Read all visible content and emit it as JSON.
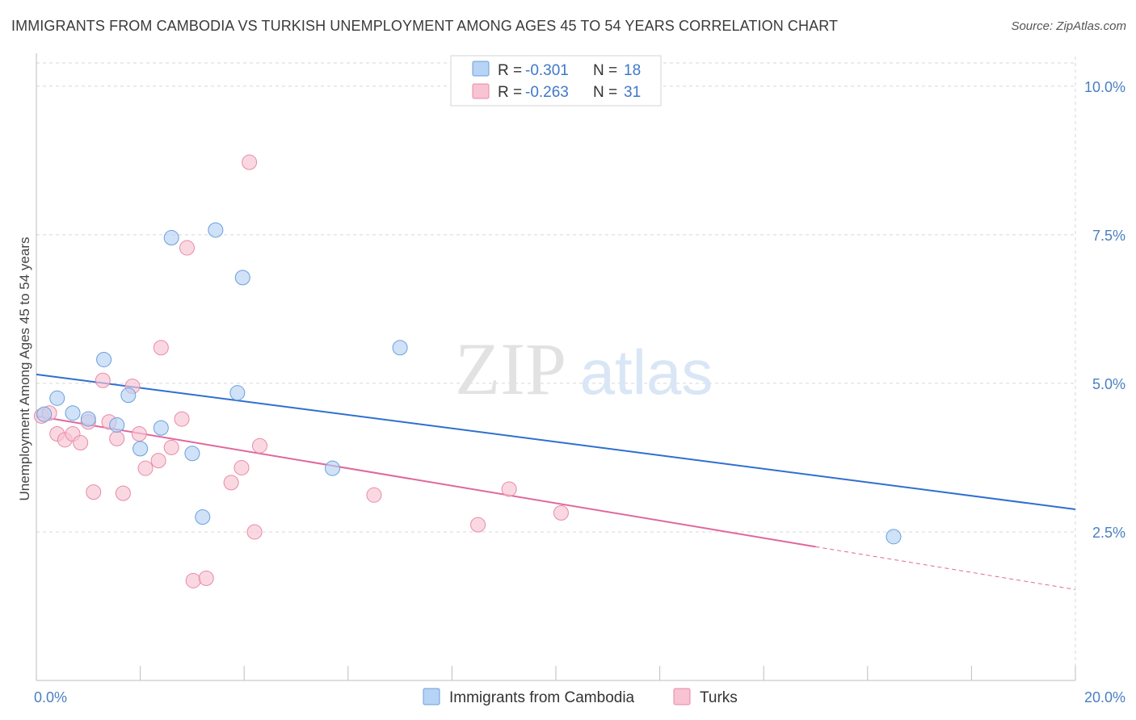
{
  "title": "IMMIGRANTS FROM CAMBODIA VS TURKISH UNEMPLOYMENT AMONG AGES 45 TO 54 YEARS CORRELATION CHART",
  "source": "Source: ZipAtlas.com",
  "watermark": {
    "zip": "ZIP",
    "atlas": "atlas"
  },
  "colors": {
    "cambodia_fill": "#b7d3f5",
    "cambodia_stroke": "#6a9fdb",
    "cambodia_line": "#2f6fcf",
    "turks_fill": "#f8c3d3",
    "turks_stroke": "#e88aa8",
    "turks_line": "#e0689a",
    "grid": "#d7d7d7",
    "axis_text": "#4a7fc1"
  },
  "legend": {
    "rows": [
      {
        "r_label": "R = ",
        "r_value": "-0.301",
        "n_label": "N = ",
        "n_value": "18"
      },
      {
        "r_label": "R = ",
        "r_value": "-0.263",
        "n_label": "N = ",
        "n_value": "31"
      }
    ]
  },
  "chart_data": {
    "type": "scatter",
    "title": "IMMIGRANTS FROM CAMBODIA VS TURKISH UNEMPLOYMENT AMONG AGES 45 TO 54 YEARS CORRELATION CHART",
    "xlabel": "",
    "ylabel": "Unemployment Among Ages 45 to 54 years",
    "xlim": [
      0,
      20
    ],
    "ylim": [
      0,
      10.5
    ],
    "x_tick_labels": [
      "0.0%",
      "20.0%"
    ],
    "y_ticks": [
      {
        "value": 2.5,
        "label": "2.5%"
      },
      {
        "value": 5.0,
        "label": "5.0%"
      },
      {
        "value": 7.5,
        "label": "7.5%"
      },
      {
        "value": 10.0,
        "label": "10.0%"
      }
    ],
    "grid": true,
    "legend_position": "top-center",
    "series": [
      {
        "name": "Immigrants from Cambodia",
        "points": [
          [
            0.15,
            4.48
          ],
          [
            0.4,
            4.75
          ],
          [
            0.7,
            4.5
          ],
          [
            1.0,
            4.4
          ],
          [
            1.3,
            5.4
          ],
          [
            1.55,
            4.3
          ],
          [
            1.77,
            4.8
          ],
          [
            2.0,
            3.9
          ],
          [
            2.4,
            4.25
          ],
          [
            2.6,
            7.45
          ],
          [
            3.0,
            3.82
          ],
          [
            3.2,
            2.75
          ],
          [
            3.45,
            7.58
          ],
          [
            3.87,
            4.84
          ],
          [
            3.97,
            6.78
          ],
          [
            5.7,
            3.57
          ],
          [
            7.0,
            5.6
          ],
          [
            16.5,
            2.42
          ]
        ],
        "trend": {
          "x0": 0,
          "y0": 5.15,
          "x1": 20,
          "y1": 2.88
        }
      },
      {
        "name": "Turks",
        "points": [
          [
            0.1,
            4.45
          ],
          [
            0.25,
            4.5
          ],
          [
            0.4,
            4.15
          ],
          [
            0.55,
            4.05
          ],
          [
            0.7,
            4.15
          ],
          [
            0.85,
            4.0
          ],
          [
            1.0,
            4.35
          ],
          [
            1.1,
            3.17
          ],
          [
            1.28,
            5.05
          ],
          [
            1.4,
            4.35
          ],
          [
            1.55,
            4.07
          ],
          [
            1.67,
            3.15
          ],
          [
            1.85,
            4.95
          ],
          [
            1.98,
            4.15
          ],
          [
            2.1,
            3.57
          ],
          [
            2.35,
            3.7
          ],
          [
            2.4,
            5.6
          ],
          [
            2.6,
            3.92
          ],
          [
            2.8,
            4.4
          ],
          [
            2.9,
            7.28
          ],
          [
            3.02,
            1.68
          ],
          [
            3.27,
            1.72
          ],
          [
            3.75,
            3.33
          ],
          [
            3.95,
            3.58
          ],
          [
            4.1,
            8.72
          ],
          [
            4.2,
            2.5
          ],
          [
            4.3,
            3.95
          ],
          [
            6.5,
            3.12
          ],
          [
            8.5,
            2.62
          ],
          [
            9.1,
            3.22
          ],
          [
            10.1,
            2.82
          ]
        ],
        "trend": {
          "x0": 0,
          "y0": 4.45,
          "x1": 15,
          "y1": 2.25
        },
        "trend_dashed": {
          "x0": 15,
          "y0": 2.25,
          "x1": 20,
          "y1": 1.53
        }
      }
    ]
  }
}
